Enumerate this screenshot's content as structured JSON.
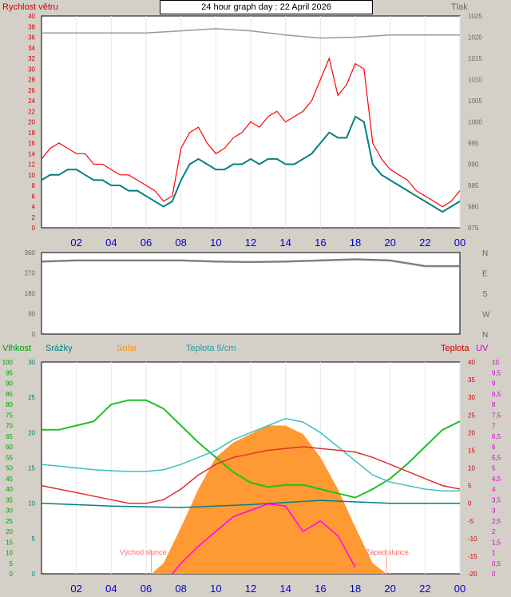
{
  "header": {
    "title": "24 hour graph day : 22 April 2026",
    "wind_label": "Rychlost větru",
    "pressure_label": "Tlak"
  },
  "bottom_labels": {
    "humidity": "Vlhkost",
    "rain": "Srážky",
    "solar": "Solar",
    "temp5": "Teplota 5/cm",
    "temp": "Teplota",
    "uv": "UV",
    "sunrise": "Východ slunce",
    "sunset": "Západ slunce"
  },
  "colors": {
    "wind_gust": "#ff0000",
    "wind_avg": "#008080",
    "pressure": "#999999",
    "direction": "#808080",
    "humidity": "#20c020",
    "rain": "#008080",
    "solar": "#ff9933",
    "temp5": "#40c0c0",
    "temp": "#e03030",
    "uv": "#ff00ff",
    "time_label": "#0000cc"
  },
  "chart_data": [
    {
      "type": "line",
      "name": "wind",
      "title": "24 hour graph day : 22 April 2026",
      "ylabel": "Rychlost větru",
      "y2label": "Tlak",
      "ylim": [
        0,
        40
      ],
      "y2lim": [
        975,
        1025
      ],
      "yticks": [
        "0",
        "2",
        "4",
        "6",
        "8",
        "10",
        "12",
        "14",
        "16",
        "18",
        "20",
        "22",
        "24",
        "26",
        "28",
        "30",
        "32",
        "34",
        "36",
        "38",
        "40"
      ],
      "y2ticks": [
        "975",
        "980",
        "985",
        "990",
        "995",
        "1000",
        "1005",
        "1010",
        "1015",
        "1020",
        "1025"
      ],
      "xticks": [
        "02",
        "04",
        "06",
        "08",
        "10",
        "12",
        "14",
        "16",
        "18",
        "20",
        "22",
        "00"
      ],
      "series": [
        {
          "name": "gust",
          "x": [
            0,
            0.5,
            1,
            1.5,
            2,
            2.5,
            3,
            3.5,
            4,
            4.5,
            5,
            5.5,
            6,
            6.5,
            7,
            7.5,
            8,
            8.5,
            9,
            9.5,
            10,
            10.5,
            11,
            11.5,
            12,
            12.5,
            13,
            13.5,
            14,
            14.5,
            15,
            15.5,
            16,
            16.5,
            17,
            17.5,
            18,
            18.5,
            19,
            19.5,
            20,
            20.5,
            21,
            21.5,
            22,
            22.5,
            23,
            23.5,
            24
          ],
          "values": [
            13,
            15,
            16,
            15,
            14,
            14,
            12,
            12,
            11,
            10,
            10,
            9,
            8,
            7,
            5,
            6,
            15,
            18,
            19,
            16,
            14,
            15,
            17,
            18,
            20,
            19,
            21,
            22,
            20,
            21,
            22,
            24,
            28,
            32,
            25,
            27,
            31,
            30,
            16,
            13,
            11,
            10,
            9,
            7,
            6,
            5,
            4,
            5,
            7
          ]
        },
        {
          "name": "avg",
          "x": [
            0,
            0.5,
            1,
            1.5,
            2,
            2.5,
            3,
            3.5,
            4,
            4.5,
            5,
            5.5,
            6,
            6.5,
            7,
            7.5,
            8,
            8.5,
            9,
            9.5,
            10,
            10.5,
            11,
            11.5,
            12,
            12.5,
            13,
            13.5,
            14,
            14.5,
            15,
            15.5,
            16,
            16.5,
            17,
            17.5,
            18,
            18.5,
            19,
            19.5,
            20,
            20.5,
            21,
            21.5,
            22,
            22.5,
            23,
            23.5,
            24
          ],
          "values": [
            9,
            10,
            10,
            11,
            11,
            10,
            9,
            9,
            8,
            8,
            7,
            7,
            6,
            5,
            4,
            5,
            9,
            12,
            13,
            12,
            11,
            11,
            12,
            12,
            13,
            12,
            13,
            13,
            12,
            12,
            13,
            14,
            16,
            18,
            17,
            17,
            21,
            20,
            12,
            10,
            9,
            8,
            7,
            6,
            5,
            4,
            3,
            4,
            5
          ]
        },
        {
          "name": "pressure",
          "x": [
            0,
            2,
            4,
            6,
            8,
            10,
            12,
            14,
            16,
            18,
            20,
            22,
            24
          ],
          "values": [
            1021,
            1021,
            1021,
            1021,
            1021.5,
            1022,
            1021.5,
            1020.5,
            1019.8,
            1020,
            1020.5,
            1020.5,
            1020.5
          ]
        }
      ]
    },
    {
      "type": "line",
      "name": "direction",
      "ylim": [
        0,
        360
      ],
      "yticks": [
        "0",
        "90",
        "180",
        "270",
        "360"
      ],
      "y2ticks": [
        "N",
        "W",
        "S",
        "E",
        "N"
      ],
      "series": [
        {
          "name": "direction",
          "x": [
            0,
            2,
            4,
            6,
            8,
            10,
            12,
            14,
            16,
            18,
            20,
            22,
            24
          ],
          "values": [
            320,
            325,
            325,
            325,
            325,
            320,
            318,
            320,
            325,
            330,
            325,
            300,
            300
          ]
        }
      ]
    },
    {
      "type": "area",
      "name": "climate",
      "ylabel": "Vlhkost",
      "y2label": "Teplota",
      "ylim": [
        0,
        100
      ],
      "rain_lim": [
        0,
        30
      ],
      "temp_lim": [
        -20,
        40
      ],
      "uv_lim": [
        0,
        10
      ],
      "yticks": [
        "0",
        "5",
        "10",
        "15",
        "20",
        "25",
        "30",
        "35",
        "40",
        "45",
        "50",
        "55",
        "60",
        "65",
        "70",
        "75",
        "80",
        "85",
        "90",
        "95",
        "100"
      ],
      "rain_ticks": [
        "0",
        "5",
        "10",
        "15",
        "20",
        "25",
        "30"
      ],
      "temp_ticks": [
        "-20",
        "-15",
        "-10",
        "-5",
        "0",
        "5",
        "10",
        "15",
        "20",
        "25",
        "30",
        "35",
        "40"
      ],
      "uv_ticks": [
        "0",
        "0,5",
        "1",
        "1,5",
        "2",
        "2,5",
        "3",
        "3,5",
        "4",
        "4,5",
        "5",
        "5,5",
        "6",
        "6,5",
        "7",
        "7,5",
        "8",
        "8,5",
        "9",
        "9,5",
        "10"
      ],
      "xticks": [
        "02",
        "04",
        "06",
        "08",
        "10",
        "12",
        "14",
        "16",
        "18",
        "20",
        "22",
        "00"
      ],
      "series": [
        {
          "name": "humidity",
          "x": [
            0,
            1,
            2,
            3,
            4,
            5,
            6,
            7,
            8,
            9,
            10,
            11,
            12,
            13,
            14,
            15,
            16,
            17,
            18,
            19,
            20,
            21,
            22,
            23,
            24
          ],
          "values": [
            68,
            68,
            70,
            72,
            80,
            82,
            82,
            78,
            70,
            62,
            55,
            48,
            43,
            41,
            42,
            42,
            40,
            38,
            36,
            40,
            45,
            52,
            60,
            68,
            72
          ]
        },
        {
          "name": "temp5",
          "x": [
            0,
            1,
            2,
            3,
            4,
            5,
            6,
            7,
            8,
            9,
            10,
            11,
            12,
            13,
            14,
            15,
            16,
            17,
            18,
            19,
            20,
            21,
            22,
            23,
            24
          ],
          "values": [
            11,
            10.5,
            10,
            9.5,
            9.2,
            9,
            9,
            9.5,
            11,
            13,
            15,
            18,
            20,
            22,
            24,
            23,
            20,
            16,
            12,
            8,
            6,
            5,
            4,
            3.5,
            3.5
          ]
        },
        {
          "name": "temp",
          "x": [
            0,
            1,
            2,
            3,
            4,
            5,
            6,
            7,
            8,
            9,
            10,
            11,
            12,
            13,
            14,
            15,
            16,
            17,
            18,
            19,
            20,
            21,
            22,
            23,
            24
          ],
          "values": [
            5,
            4,
            3,
            2,
            1,
            0,
            0,
            1,
            4,
            8,
            11,
            13,
            14,
            15,
            15.5,
            16,
            15.5,
            15,
            14.5,
            13,
            11,
            9,
            7,
            5,
            4
          ]
        },
        {
          "name": "rain",
          "x": [
            0,
            4,
            8,
            12,
            16,
            20,
            24
          ],
          "values": [
            10,
            9.6,
            9.4,
            9.8,
            10.4,
            10,
            10
          ]
        },
        {
          "name": "solar",
          "x": [
            6.3,
            7,
            8,
            9,
            10,
            11,
            12,
            13,
            14,
            15,
            16,
            17,
            18,
            19,
            19.8
          ],
          "values": [
            0,
            5,
            22,
            40,
            55,
            62,
            66,
            70,
            70,
            66,
            55,
            40,
            22,
            5,
            0
          ]
        },
        {
          "name": "uv",
          "x": [
            7.5,
            8,
            9,
            10,
            11,
            12,
            13,
            14,
            15,
            16,
            17,
            18
          ],
          "values": [
            0,
            0.5,
            1.3,
            2,
            2.7,
            3,
            3.3,
            3.2,
            2,
            2.5,
            1.8,
            0.3
          ]
        }
      ]
    }
  ]
}
